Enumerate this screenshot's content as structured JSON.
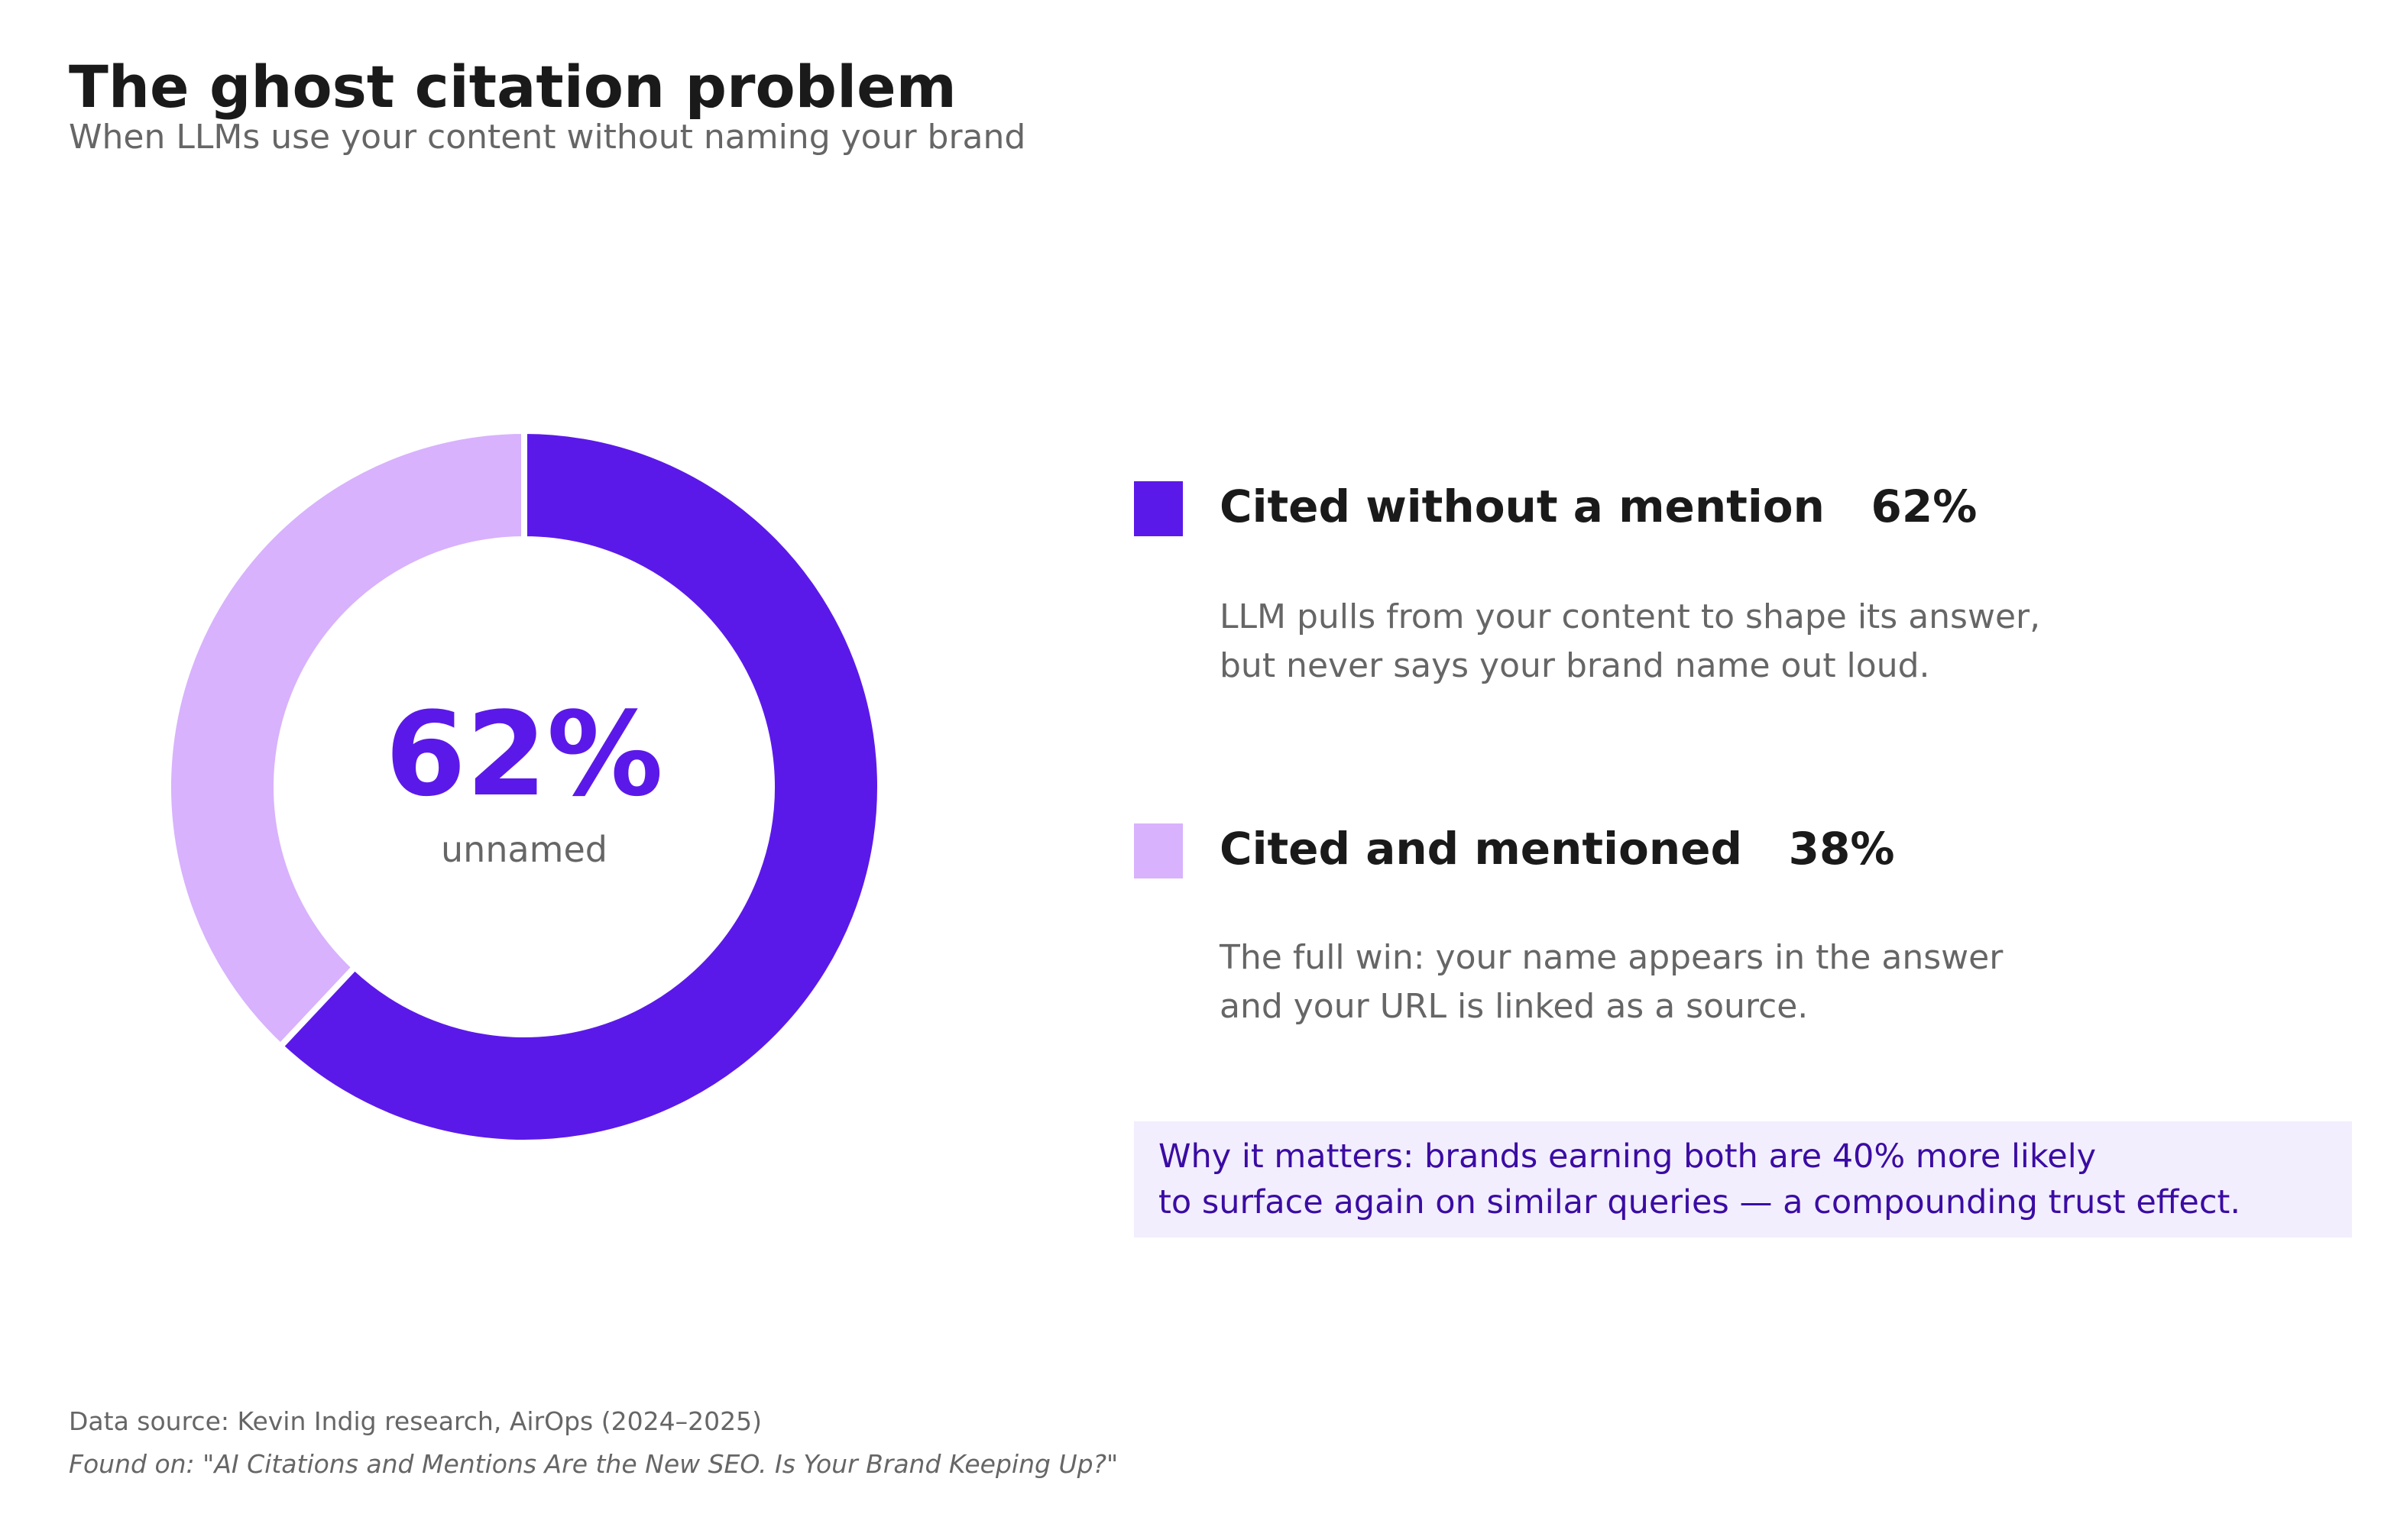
{
  "header": {
    "title": "The ghost citation problem",
    "subtitle": "When LLMs use your content without naming your brand"
  },
  "chart_data": {
    "type": "pie",
    "style": "donut",
    "categories": [
      "Cited without a mention",
      "Cited and mentioned"
    ],
    "values": [
      62,
      38
    ],
    "unit": "%",
    "colors": [
      "#5b19e9",
      "#d8b2fd"
    ],
    "center_value": "62%",
    "center_label": "unnamed"
  },
  "legend": {
    "items": [
      {
        "label": "Cited without a mention",
        "value": "62%",
        "color": "#5b19e9",
        "description": [
          "LLM pulls from your content to shape its answer,",
          "but never says your brand name out loud."
        ]
      },
      {
        "label": "Cited and mentioned",
        "value": "38%",
        "color": "#d8b2fd",
        "description": [
          "The full win: your name appears in the answer",
          "and your URL is linked as a source."
        ]
      }
    ]
  },
  "callout": {
    "lines": [
      "Why it matters: brands earning both are 40% more likely",
      "to surface again on similar queries — a compounding trust effect."
    ],
    "background": "#f3eefd",
    "text_color": "#3a0ca3"
  },
  "footer": {
    "source": "Data source: Kevin Indig research, AirOps (2024–2025)",
    "found_on": "Found on: \"AI Citations and Mentions Are the New SEO. Is Your Brand Keeping Up?\""
  }
}
